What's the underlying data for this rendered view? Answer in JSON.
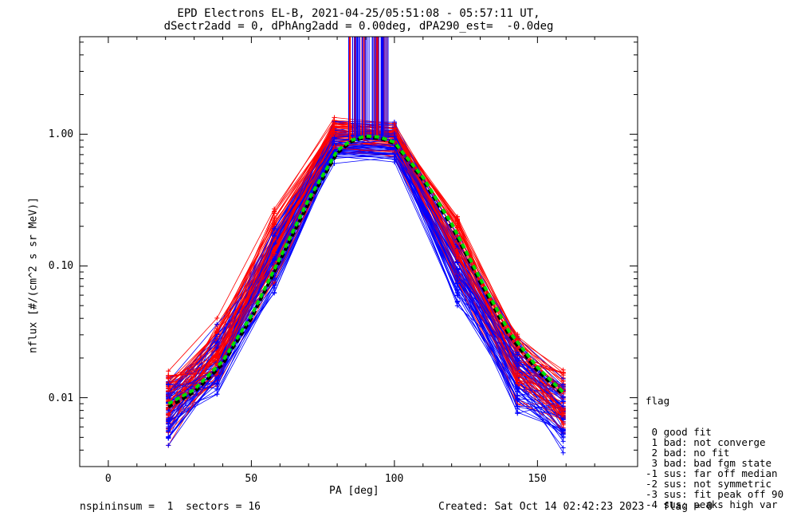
{
  "chart_data": {
    "type": "line",
    "title_line1": "EPD Electrons EL-B, 2021-04-25/05:51:08 - 05:57:11 UT,",
    "title_line2": "dSectr2add = 0, dPhAng2add = 0.00deg, dPA290_est=  -0.0deg",
    "xlabel": "PA [deg]",
    "ylabel": "nflux [#/(cm^2 s sr MeV)]",
    "xlim": [
      -10,
      185
    ],
    "ylim": [
      0.003,
      5.5
    ],
    "ylog": true,
    "x_ticks": [
      "0",
      "50",
      "100",
      "150"
    ],
    "x_tick_values": [
      0,
      50,
      100,
      150
    ],
    "y_ticks": [
      "0.01",
      "0.10",
      "1.00"
    ],
    "y_tick_values": [
      0.01,
      0.1,
      1.0
    ],
    "x": [
      21,
      38,
      58,
      79,
      100,
      122,
      143,
      159
    ],
    "series": [
      {
        "color": "#ff0000",
        "values": [
          0.009,
          0.02,
          0.14,
          0.95,
          0.9,
          0.13,
          0.018,
          0.009
        ]
      },
      {
        "color": "#0000ff",
        "values": [
          0.008,
          0.018,
          0.11,
          0.85,
          0.85,
          0.09,
          0.014,
          0.008
        ]
      }
    ],
    "median_fit": {
      "color": "#000000",
      "x": [
        21,
        30,
        40,
        50,
        60,
        70,
        80,
        85,
        90,
        95,
        100,
        110,
        120,
        130,
        140,
        150,
        159
      ],
      "values": [
        0.0085,
        0.011,
        0.018,
        0.04,
        0.11,
        0.3,
        0.72,
        0.88,
        0.95,
        0.93,
        0.85,
        0.45,
        0.2,
        0.075,
        0.03,
        0.016,
        0.0105
      ]
    },
    "gauss_fit": {
      "color": "#00dd00",
      "x": [
        21,
        30,
        40,
        50,
        60,
        70,
        80,
        85,
        90,
        95,
        100,
        110,
        120,
        130,
        140,
        150,
        159
      ],
      "values": [
        0.009,
        0.0115,
        0.019,
        0.042,
        0.115,
        0.32,
        0.75,
        0.9,
        0.97,
        0.95,
        0.87,
        0.47,
        0.21,
        0.08,
        0.032,
        0.017,
        0.011
      ]
    },
    "legend": {
      "title": "flag",
      "items": [
        " 0 good fit",
        " 1 bad: not converge",
        " 2 bad: no fit",
        " 3 bad: bad fgm state",
        "-1 sus: far off median",
        "-2 sus: not symmetric",
        "-3 sus: fit peak off 90",
        "-4 sus: peaks high var"
      ]
    },
    "footer_left": "nspininsum =  1  sectors = 16",
    "footer_right": "Created: Sat Oct 14 02:42:23 2023   flag = 0"
  }
}
